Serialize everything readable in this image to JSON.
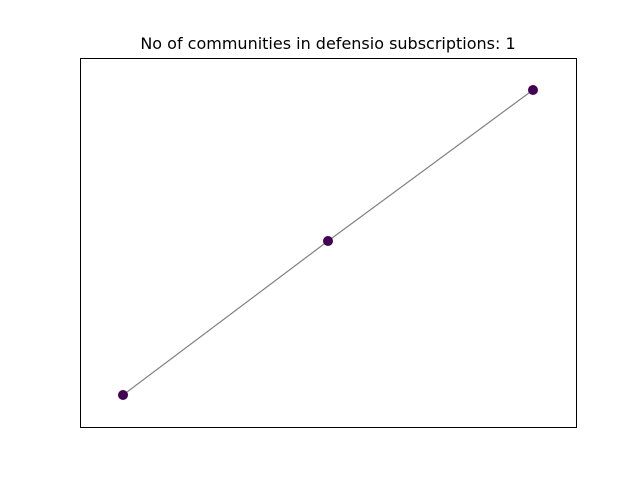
{
  "title": "No of communities in defensio subscriptions: 1",
  "colors": {
    "node": "#440154",
    "edge": "#808080",
    "frame": "#000000",
    "background": "#ffffff"
  },
  "graph": {
    "nodes": [
      {
        "id": "n1",
        "community": 0
      },
      {
        "id": "n2",
        "community": 0
      },
      {
        "id": "n3",
        "community": 0
      }
    ],
    "edges": [
      {
        "source": "n1",
        "target": "n2"
      },
      {
        "source": "n2",
        "target": "n3"
      }
    ]
  }
}
